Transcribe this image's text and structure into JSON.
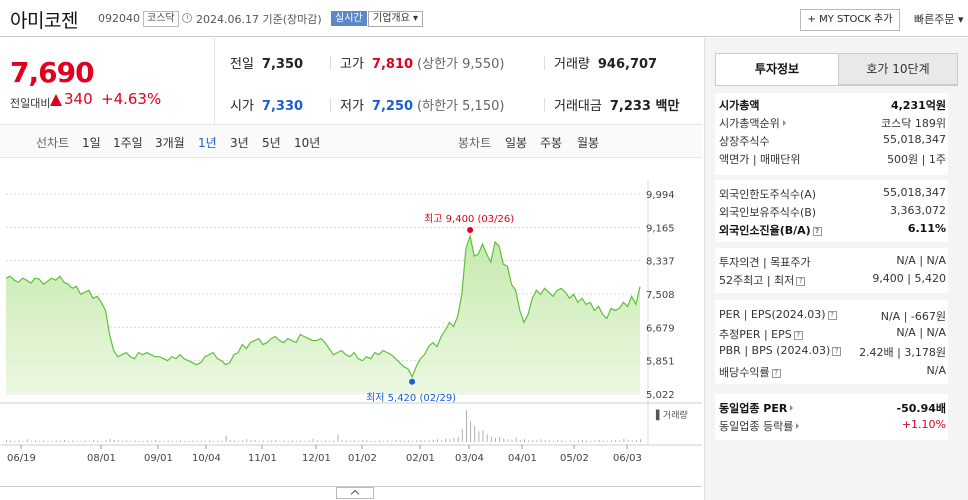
{
  "header": {
    "title": "아미코젠",
    "code": "092040",
    "market": "코스닥",
    "date": "2024.06.17 기준(장마감)",
    "live_label": "실시간",
    "company_info": "기업개요 ▾",
    "mystock_label": "+ MY STOCK 추가",
    "quick_order": "빠른주문 ▾"
  },
  "price": {
    "current": "7,690",
    "change_label": "전일대비",
    "change": "340",
    "change_pct": "+4.63%"
  },
  "quote": {
    "prev_close_label": "전일",
    "prev_close": "7,350",
    "high_label": "고가",
    "high": "7,810",
    "upper_limit_label": "(상한가",
    "upper_limit": "9,550)",
    "volume_label": "거래량",
    "volume": "946,707",
    "open_label": "시가",
    "open": "7,330",
    "low_label": "저가",
    "low": "7,250",
    "lower_limit_label": "(하한가",
    "lower_limit": "5,150)",
    "turnover_label": "거래대금",
    "turnover": "7,233 백만"
  },
  "chart_tabs": {
    "line_label": "선차트",
    "line": [
      "1일",
      "1주일",
      "3개월",
      "1년",
      "3년",
      "5년",
      "10년"
    ],
    "active": "1년",
    "candle_label": "봉차트",
    "candle": [
      "일봉",
      "주봉",
      "월봉"
    ]
  },
  "chart_data": {
    "type": "area",
    "y_ticks": [
      "9,994",
      "9,165",
      "8,337",
      "7,508",
      "6,679",
      "5,851",
      "5,022"
    ],
    "ylim": [
      5022,
      9994
    ],
    "x_ticks": [
      "06/19",
      "08/01",
      "09/01",
      "10/04",
      "11/01",
      "12/01",
      "01/02",
      "02/01",
      "03/04",
      "04/01",
      "05/02",
      "06/03"
    ],
    "annotation_high": "최고 9,400 (03/26)",
    "annotation_low": "최저 5,420 (02/29)",
    "volume_label": "거래량",
    "series": [
      {
        "values": [
          7900,
          7950,
          7850,
          7800,
          7900,
          7850,
          7780,
          7900,
          7880,
          7750,
          7820,
          7900,
          7850,
          7950,
          7800,
          7750,
          7650,
          7700,
          7500,
          7550,
          7600,
          7400,
          7450,
          7300,
          7100,
          6500,
          6100,
          5950,
          6000,
          6050,
          5950,
          5900,
          6050,
          6000,
          6050,
          6000,
          5950,
          5950,
          5900,
          5850,
          5950,
          5900,
          6000,
          5900,
          5850,
          5800,
          5750,
          5800,
          5950,
          6000,
          6050,
          5900,
          5850,
          5750,
          5800,
          6000,
          6050,
          6250,
          6150,
          6300,
          6350,
          6400,
          6250,
          6300,
          6400,
          6450,
          6350,
          6300,
          6400,
          6350,
          6300,
          6500,
          6450,
          6400,
          6350,
          6350,
          6400,
          6300,
          6150,
          6000,
          6050,
          6100,
          6000,
          5950,
          6050,
          5900,
          5850,
          5950,
          5900,
          6050,
          6000,
          6100,
          6050,
          6000,
          5900,
          5800,
          5700,
          5650,
          5450,
          5700,
          5900,
          6000,
          6200,
          6300,
          6200,
          6450,
          6600,
          6800,
          6700,
          6950,
          7500,
          8650,
          8950,
          8450,
          8500,
          8750,
          8500,
          8300,
          8800,
          8700,
          8250,
          8200,
          7750,
          7600,
          7100,
          6800,
          7000,
          7400,
          7600,
          7500,
          7650,
          7550,
          7450,
          7600,
          7650,
          7550,
          7400,
          7500,
          7300,
          7400,
          7250,
          7300,
          7100,
          7200,
          7000,
          6900,
          7150,
          7100,
          7150,
          7300,
          7200,
          7450,
          7250,
          7690
        ]
      }
    ],
    "volume": [
      4,
      3,
      2,
      3,
      2,
      5,
      2,
      3,
      2,
      3,
      2,
      2,
      3,
      2,
      4,
      2,
      3,
      2,
      2,
      3,
      2,
      4,
      3,
      2,
      3,
      6,
      4,
      3,
      2,
      3,
      2,
      3,
      2,
      2,
      3,
      2,
      4,
      2,
      2,
      3,
      2,
      2,
      3,
      2,
      2,
      3,
      2,
      3,
      2,
      3,
      2,
      2,
      3,
      12,
      4,
      3,
      2,
      3,
      5,
      3,
      4,
      2,
      3,
      2,
      3,
      4,
      2,
      3,
      2,
      3,
      2,
      3,
      2,
      3,
      6,
      3,
      2,
      3,
      2,
      3,
      14,
      4,
      3,
      2,
      3,
      2,
      4,
      3,
      2,
      2,
      3,
      2,
      3,
      2,
      4,
      3,
      2,
      3,
      2,
      3,
      4,
      3,
      3,
      4,
      5,
      3,
      6,
      5,
      8,
      10,
      24,
      60,
      40,
      30,
      20,
      22,
      14,
      10,
      8,
      9,
      6,
      5,
      4,
      8,
      4,
      5,
      3,
      4,
      3,
      5,
      4,
      3,
      2,
      4,
      3,
      2,
      3,
      2,
      3,
      4,
      3,
      2,
      3,
      4,
      3,
      2,
      3,
      4,
      3,
      6,
      4,
      3,
      4,
      5
    ]
  },
  "invest_info": {
    "tab_active": "투자정보",
    "tab_inactive": "호가 10단계",
    "market_cap_label": "시가총액",
    "market_cap": "4,231억원",
    "market_cap_rank_label": "시가총액순위",
    "market_cap_rank": "코스닥 189위",
    "shares_label": "상장주식수",
    "shares": "55,018,347",
    "par_label": "액면가 | 매매단위",
    "par": "500원 | 1주",
    "foreign_limit_label": "외국인한도주식수(A)",
    "foreign_limit": "55,018,347",
    "foreign_hold_label": "외국인보유주식수(B)",
    "foreign_hold": "3,363,072",
    "foreign_ratio_label": "외국인소진율(B/A)",
    "foreign_ratio": "6.11%",
    "opinion_label": "투자의견 | 목표주가",
    "opinion": "N/A | N/A",
    "wk52_label": "52주최고 | 최저",
    "wk52": "9,400 | 5,420",
    "per_label": "PER | EPS(2024.03)",
    "per": "N/A | -667원",
    "est_per_label": "추정PER | EPS",
    "est_per": "N/A | N/A",
    "pbr_label": "PBR | BPS (2024.03)",
    "pbr": "2.42배 | 3,178원",
    "div_label": "배당수익률",
    "div": "N/A",
    "sector_per_label": "동일업종 PER",
    "sector_per": "-50.94배",
    "sector_chg_label": "동일업종 등락률",
    "sector_chg": "+1.10%"
  }
}
